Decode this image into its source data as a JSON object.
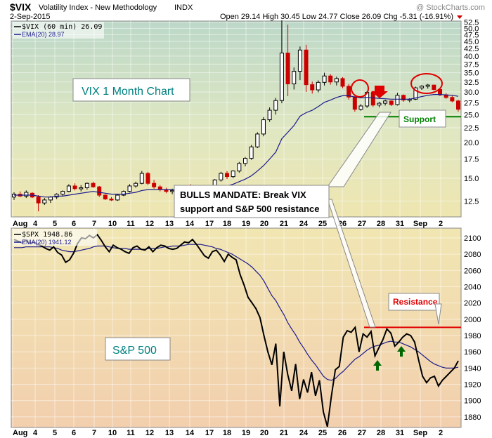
{
  "header": {
    "symbol": "$VIX",
    "name": "Volatility Index - New Methodology",
    "exchange": "INDX",
    "watermark": "@ StockCharts.com",
    "date": "2-Sep-2015",
    "ohlc": "Open 29.14  High 30.45  Low 24.77  Close 26.09  Chg -5.31 (-16.91%)"
  },
  "colors": {
    "up": "#000000",
    "down": "#cc0000",
    "ema": "#1a1a8c",
    "support": "#008000",
    "resistance": "#e00000",
    "arrow_down": "#e00000",
    "arrow_up": "#006600"
  },
  "chart_data": [
    {
      "type": "candlestick",
      "title": "VIX 1 Month Chart",
      "legend": [
        "$VIX (60 min) 26.09",
        "EMA(20) 28.97"
      ],
      "y_ticks": [
        "52.5",
        "50.0",
        "47.5",
        "45.0",
        "42.5",
        "40.0",
        "37.5",
        "35.0",
        "32.5",
        "30.0",
        "27.5",
        "25.0",
        "22.5",
        "20.0",
        "17.5",
        "15.0",
        "12.5"
      ],
      "ylim": [
        11,
        53
      ],
      "y_scale": "log",
      "x_ticks": [
        "Aug",
        "4",
        "5",
        "6",
        "7",
        "10",
        "11",
        "12",
        "13",
        "14",
        "17",
        "18",
        "19",
        "20",
        "21",
        "24",
        "25",
        "26",
        "27",
        "28",
        "31",
        "Sep",
        "2"
      ],
      "annotations": {
        "support_label": "Support",
        "support_level": 24.6,
        "callout": [
          "BULLS MANDATE:  Break VIX",
          "support and S&P 500 resistance"
        ]
      },
      "candles": [
        [
          12.9,
          13.4,
          12.6,
          13.2
        ],
        [
          13.2,
          13.5,
          12.9,
          13.0
        ],
        [
          13.0,
          13.6,
          12.8,
          13.4
        ],
        [
          13.3,
          13.4,
          12.8,
          12.9
        ],
        [
          12.9,
          13.1,
          11.5,
          12.3
        ],
        [
          12.3,
          12.8,
          12.1,
          12.6
        ],
        [
          12.6,
          13.0,
          12.3,
          12.9
        ],
        [
          12.9,
          13.3,
          12.7,
          13.2
        ],
        [
          13.2,
          13.6,
          13.0,
          13.5
        ],
        [
          13.5,
          14.3,
          13.4,
          14.1
        ],
        [
          14.1,
          14.4,
          13.6,
          13.8
        ],
        [
          13.8,
          14.2,
          13.5,
          13.9
        ],
        [
          13.9,
          14.5,
          13.7,
          14.4
        ],
        [
          14.4,
          14.6,
          13.9,
          14.0
        ],
        [
          14.0,
          14.1,
          12.9,
          13.1
        ],
        [
          13.1,
          13.2,
          12.6,
          12.7
        ],
        [
          12.7,
          12.9,
          12.5,
          12.6
        ],
        [
          12.6,
          13.2,
          12.5,
          13.1
        ],
        [
          13.1,
          13.6,
          13.0,
          13.5
        ],
        [
          13.5,
          14.3,
          13.4,
          14.1
        ],
        [
          14.1,
          14.6,
          13.9,
          14.4
        ],
        [
          14.4,
          15.9,
          14.3,
          15.6
        ],
        [
          15.6,
          15.8,
          14.2,
          14.4
        ],
        [
          14.4,
          14.8,
          13.8,
          14.0
        ],
        [
          14.0,
          14.2,
          13.5,
          13.7
        ],
        [
          13.7,
          13.9,
          13.3,
          13.5
        ],
        [
          13.5,
          13.8,
          13.2,
          13.6
        ],
        [
          13.6,
          13.9,
          13.4,
          13.7
        ],
        [
          13.7,
          14.2,
          13.5,
          14.1
        ],
        [
          14.1,
          14.3,
          13.6,
          13.8
        ],
        [
          13.8,
          13.9,
          13.2,
          13.4
        ],
        [
          13.4,
          13.7,
          13.2,
          13.5
        ],
        [
          13.5,
          14.1,
          13.4,
          14.0
        ],
        [
          14.0,
          14.9,
          13.9,
          14.8
        ],
        [
          14.8,
          15.8,
          14.6,
          15.6
        ],
        [
          15.6,
          15.9,
          14.9,
          15.2
        ],
        [
          15.2,
          16.0,
          15.0,
          15.9
        ],
        [
          15.9,
          17.1,
          15.7,
          16.9
        ],
        [
          16.9,
          17.8,
          16.5,
          17.6
        ],
        [
          17.6,
          19.6,
          17.4,
          19.3
        ],
        [
          19.3,
          21.7,
          19.1,
          21.4
        ],
        [
          21.4,
          24.5,
          21.0,
          24.0
        ],
        [
          24.0,
          26.5,
          23.6,
          25.9
        ],
        [
          25.9,
          28.6,
          25.0,
          28.0
        ],
        [
          28.0,
          53.3,
          27.4,
          41.0
        ],
        [
          41.0,
          51.5,
          29.0,
          32.0
        ],
        [
          32.0,
          36.5,
          30.6,
          35.4
        ],
        [
          35.4,
          43.2,
          33.0,
          42.0
        ],
        [
          42.0,
          43.8,
          30.0,
          31.8
        ],
        [
          31.8,
          32.6,
          29.6,
          30.5
        ],
        [
          30.5,
          32.9,
          29.9,
          32.4
        ],
        [
          32.4,
          35.0,
          31.6,
          34.1
        ],
        [
          34.1,
          34.6,
          31.8,
          32.5
        ],
        [
          32.5,
          33.9,
          31.6,
          33.4
        ],
        [
          33.4,
          33.8,
          30.9,
          31.4
        ],
        [
          31.4,
          32.0,
          28.2,
          28.8
        ],
        [
          28.8,
          29.0,
          25.6,
          26.1
        ],
        [
          26.1,
          27.2,
          25.8,
          26.8
        ],
        [
          26.8,
          30.2,
          26.4,
          29.9
        ],
        [
          29.9,
          30.3,
          26.6,
          27.0
        ],
        [
          27.0,
          27.7,
          26.5,
          27.4
        ],
        [
          27.4,
          28.2,
          26.9,
          27.9
        ],
        [
          27.9,
          28.0,
          26.8,
          27.1
        ],
        [
          27.1,
          29.8,
          26.9,
          29.2
        ],
        [
          29.2,
          29.4,
          27.7,
          28.1
        ],
        [
          28.1,
          28.5,
          27.6,
          28.3
        ],
        [
          28.3,
          31.3,
          28.1,
          31.0
        ],
        [
          31.0,
          31.7,
          30.5,
          31.4
        ],
        [
          31.4,
          32.0,
          30.8,
          31.7
        ],
        [
          31.7,
          31.8,
          30.4,
          30.6
        ],
        [
          30.6,
          30.8,
          29.0,
          29.3
        ],
        [
          29.3,
          29.7,
          28.4,
          28.7
        ],
        [
          28.7,
          29.1,
          27.6,
          27.9
        ],
        [
          27.9,
          28.2,
          25.6,
          26.1
        ]
      ],
      "ema": [
        13.1,
        13.1,
        13.1,
        13.1,
        13.0,
        12.9,
        12.9,
        13.0,
        13.0,
        13.1,
        13.2,
        13.3,
        13.4,
        13.5,
        13.4,
        13.3,
        13.2,
        13.2,
        13.2,
        13.3,
        13.4,
        13.6,
        13.7,
        13.7,
        13.7,
        13.7,
        13.7,
        13.7,
        13.7,
        13.7,
        13.7,
        13.7,
        13.7,
        13.8,
        14.0,
        14.1,
        14.3,
        14.6,
        14.9,
        15.3,
        15.9,
        16.6,
        17.5,
        18.5,
        20.6,
        21.7,
        22.9,
        24.7,
        25.4,
        25.9,
        26.7,
        27.6,
        28.1,
        28.7,
        29.1,
        29.1,
        28.8,
        28.6,
        28.7,
        28.6,
        28.5,
        28.4,
        28.3,
        28.3,
        28.3,
        28.3,
        28.6,
        28.9,
        29.2,
        29.4,
        29.4,
        29.3,
        29.2,
        28.97
      ]
    },
    {
      "type": "line",
      "title": "S&P 500",
      "legend": [
        "$SPX 1948.86",
        "EMA(20) 1941.12"
      ],
      "y_ticks": [
        "2100",
        "2080",
        "2060",
        "2040",
        "2020",
        "2000",
        "1980",
        "1960",
        "1940",
        "1920",
        "1900",
        "1880"
      ],
      "ylim": [
        1867,
        2112
      ],
      "x_ticks": [
        "Aug",
        "4",
        "5",
        "6",
        "7",
        "10",
        "11",
        "12",
        "13",
        "14",
        "17",
        "18",
        "19",
        "20",
        "21",
        "24",
        "25",
        "26",
        "27",
        "28",
        "31",
        "Sep",
        "2"
      ],
      "annotations": {
        "resistance_label": "Resistance",
        "resistance_level": 1990
      },
      "values": [
        2098,
        2096,
        2094,
        2097,
        2093,
        2095,
        2092,
        2090,
        2087,
        2085,
        2089,
        2082,
        2079,
        2070,
        2073,
        2081,
        2093,
        2100,
        2099,
        2103,
        2100,
        2104,
        2097,
        2089,
        2083,
        2091,
        2088,
        2086,
        2083,
        2081,
        2088,
        2090,
        2086,
        2085,
        2089,
        2083,
        2088,
        2091,
        2090,
        2087,
        2086,
        2087,
        2091,
        2095,
        2094,
        2098,
        2092,
        2085,
        2078,
        2075,
        2083,
        2085,
        2079,
        2071,
        2080,
        2076,
        2073,
        2055,
        2042,
        2027,
        2020,
        2013,
        2002,
        1980,
        1960,
        1944,
        1970,
        1893,
        1960,
        1932,
        1912,
        1945,
        1902,
        1926,
        1910,
        1935,
        1906,
        1925,
        1886,
        1868,
        1905,
        1938,
        1942,
        1978,
        1986,
        1984,
        1990,
        1960,
        1982,
        1978,
        1985,
        1955,
        1965,
        1975,
        1988,
        1983,
        1967,
        1972,
        1978,
        1982,
        1980,
        1972,
        1950,
        1930,
        1922,
        1928,
        1930,
        1918,
        1925,
        1930,
        1935,
        1940,
        1948.86
      ],
      "ema": [
        2088,
        2088,
        2088,
        2089,
        2089,
        2089,
        2089,
        2089,
        2089,
        2089,
        2088,
        2087,
        2085,
        2084,
        2083,
        2083,
        2084,
        2085,
        2086,
        2087,
        2089,
        2090,
        2090,
        2090,
        2089,
        2088,
        2087,
        2087,
        2087,
        2086,
        2086,
        2086,
        2086,
        2086,
        2087,
        2087,
        2087,
        2088,
        2089,
        2089,
        2090,
        2090,
        2090,
        2091,
        2092,
        2092,
        2092,
        2092,
        2091,
        2090,
        2089,
        2087,
        2086,
        2084,
        2082,
        2080,
        2077,
        2074,
        2071,
        2068,
        2064,
        2059,
        2054,
        2047,
        2038,
        2029,
        2023,
        2014,
        2006,
        1996,
        1988,
        1981,
        1972,
        1965,
        1957,
        1950,
        1944,
        1937,
        1930,
        1926,
        1925,
        1927,
        1932,
        1936,
        1941,
        1946,
        1951,
        1954,
        1958,
        1962,
        1965,
        1967,
        1968,
        1970,
        1972,
        1973,
        1972,
        1972,
        1970,
        1968,
        1966,
        1963,
        1960,
        1956,
        1952,
        1948,
        1945,
        1943,
        1941,
        1940,
        1940,
        1940,
        1941.12
      ]
    }
  ]
}
